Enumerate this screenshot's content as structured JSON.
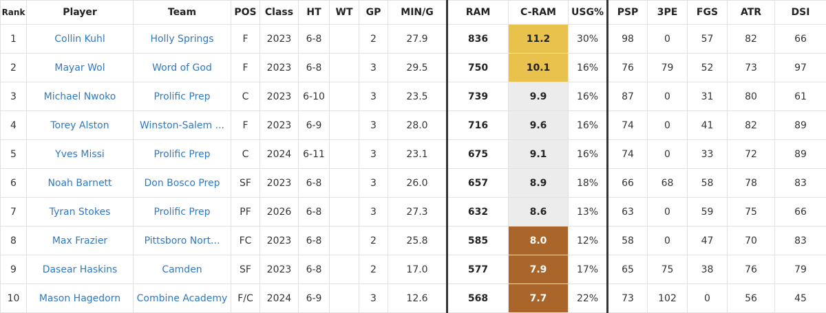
{
  "headers": {
    "rank": "Rank",
    "player": "Player",
    "team": "Team",
    "pos": "POS",
    "class": "Class",
    "ht": "HT",
    "wt": "WT",
    "gp": "GP",
    "ming": "MIN/G",
    "ram": "RAM",
    "cram": "C-RAM",
    "usg": "USG%",
    "psp": "PSP",
    "tpe": "3PE",
    "fgs": "FGS",
    "atr": "ATR",
    "dsi": "DSI"
  },
  "colors": {
    "gold": "#e8c24d",
    "grey": "#ececec",
    "brown": "#a9652a",
    "link": "#2f78c4"
  },
  "rows": [
    {
      "rank": "1",
      "player": "Collin Kuhl",
      "team": "Holly Springs",
      "pos": "F",
      "class": "2023",
      "ht": "6-8",
      "wt": "",
      "gp": "2",
      "ming": "27.9",
      "ram": "836",
      "cram": "11.2",
      "cram_tier": "gold",
      "usg": "30%",
      "psp": "98",
      "tpe": "0",
      "fgs": "57",
      "atr": "82",
      "dsi": "66"
    },
    {
      "rank": "2",
      "player": "Mayar Wol",
      "team": "Word of God",
      "pos": "F",
      "class": "2023",
      "ht": "6-8",
      "wt": "",
      "gp": "3",
      "ming": "29.5",
      "ram": "750",
      "cram": "10.1",
      "cram_tier": "gold",
      "usg": "16%",
      "psp": "76",
      "tpe": "79",
      "fgs": "52",
      "atr": "73",
      "dsi": "97"
    },
    {
      "rank": "3",
      "player": "Michael Nwoko",
      "team": "Prolific Prep",
      "pos": "C",
      "class": "2023",
      "ht": "6-10",
      "wt": "",
      "gp": "3",
      "ming": "23.5",
      "ram": "739",
      "cram": "9.9",
      "cram_tier": "grey",
      "usg": "16%",
      "psp": "87",
      "tpe": "0",
      "fgs": "31",
      "atr": "80",
      "dsi": "61"
    },
    {
      "rank": "4",
      "player": "Torey Alston",
      "team": "Winston-Salem ...",
      "pos": "F",
      "class": "2023",
      "ht": "6-9",
      "wt": "",
      "gp": "3",
      "ming": "28.0",
      "ram": "716",
      "cram": "9.6",
      "cram_tier": "grey",
      "usg": "16%",
      "psp": "74",
      "tpe": "0",
      "fgs": "41",
      "atr": "82",
      "dsi": "89"
    },
    {
      "rank": "5",
      "player": "Yves Missi",
      "team": "Prolific Prep",
      "pos": "C",
      "class": "2024",
      "ht": "6-11",
      "wt": "",
      "gp": "3",
      "ming": "23.1",
      "ram": "675",
      "cram": "9.1",
      "cram_tier": "grey",
      "usg": "16%",
      "psp": "74",
      "tpe": "0",
      "fgs": "33",
      "atr": "72",
      "dsi": "89"
    },
    {
      "rank": "6",
      "player": "Noah Barnett",
      "team": "Don Bosco Prep",
      "pos": "SF",
      "class": "2023",
      "ht": "6-8",
      "wt": "",
      "gp": "3",
      "ming": "26.0",
      "ram": "657",
      "cram": "8.9",
      "cram_tier": "grey",
      "usg": "18%",
      "psp": "66",
      "tpe": "68",
      "fgs": "58",
      "atr": "78",
      "dsi": "83"
    },
    {
      "rank": "7",
      "player": "Tyran Stokes",
      "team": "Prolific Prep",
      "pos": "PF",
      "class": "2026",
      "ht": "6-8",
      "wt": "",
      "gp": "3",
      "ming": "27.3",
      "ram": "632",
      "cram": "8.6",
      "cram_tier": "grey",
      "usg": "13%",
      "psp": "63",
      "tpe": "0",
      "fgs": "59",
      "atr": "75",
      "dsi": "66"
    },
    {
      "rank": "8",
      "player": "Max Frazier",
      "team": "Pittsboro Nort...",
      "pos": "FC",
      "class": "2023",
      "ht": "6-8",
      "wt": "",
      "gp": "2",
      "ming": "25.8",
      "ram": "585",
      "cram": "8.0",
      "cram_tier": "brown",
      "usg": "12%",
      "psp": "58",
      "tpe": "0",
      "fgs": "47",
      "atr": "70",
      "dsi": "83"
    },
    {
      "rank": "9",
      "player": "Dasear Haskins",
      "team": "Camden",
      "pos": "SF",
      "class": "2023",
      "ht": "6-8",
      "wt": "",
      "gp": "2",
      "ming": "17.0",
      "ram": "577",
      "cram": "7.9",
      "cram_tier": "brown",
      "usg": "17%",
      "psp": "65",
      "tpe": "75",
      "fgs": "38",
      "atr": "76",
      "dsi": "79"
    },
    {
      "rank": "10",
      "player": "Mason Hagedorn",
      "team": "Combine Academy",
      "pos": "F/C",
      "class": "2024",
      "ht": "6-9",
      "wt": "",
      "gp": "3",
      "ming": "12.6",
      "ram": "568",
      "cram": "7.7",
      "cram_tier": "brown",
      "usg": "22%",
      "psp": "73",
      "tpe": "102",
      "fgs": "0",
      "atr": "56",
      "dsi": "45"
    }
  ]
}
